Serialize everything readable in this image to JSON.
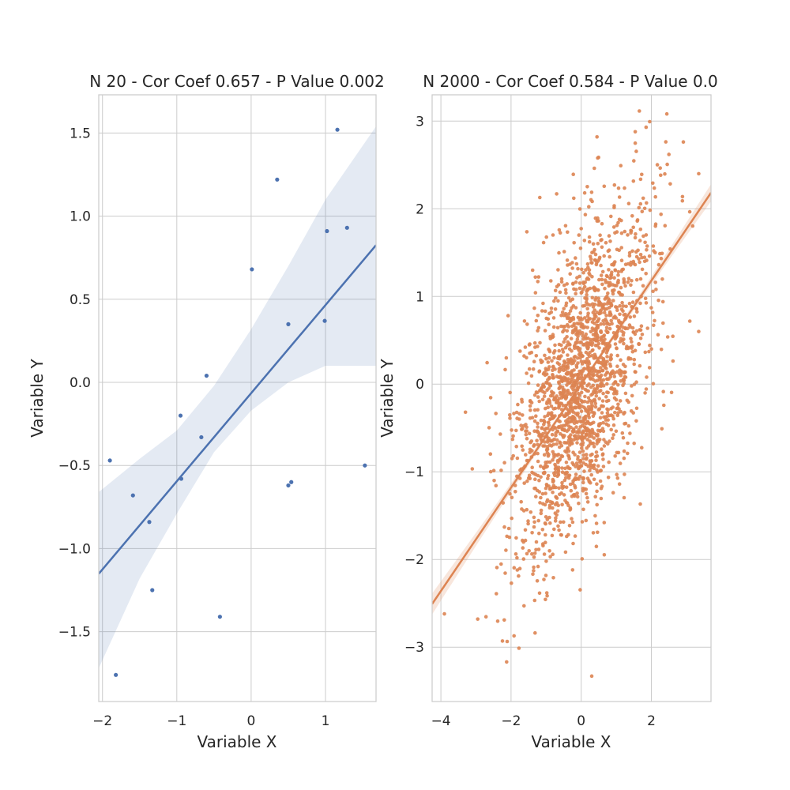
{
  "chart_data": [
    {
      "type": "scatter",
      "title": "N 20 - Cor Coef 0.657 - P Value 0.002",
      "xlabel": "Variable X",
      "ylabel": "Variable Y",
      "xlim": [
        -2.05,
        1.68
      ],
      "ylim": [
        -1.92,
        1.73
      ],
      "xticks": [
        -2,
        -1,
        0,
        1
      ],
      "yticks": [
        -1.5,
        -1.0,
        -0.5,
        0.0,
        0.5,
        1.0,
        1.5
      ],
      "xtick_labels": [
        "−2",
        "−1",
        "0",
        "1"
      ],
      "ytick_labels": [
        "−1.5",
        "−1.0",
        "−0.5",
        "0.0",
        "0.5",
        "1.0",
        "1.5"
      ],
      "grid": true,
      "color": "#4c72b0",
      "points": [
        {
          "x": -1.9,
          "y": -0.47
        },
        {
          "x": -1.82,
          "y": -1.76
        },
        {
          "x": -1.59,
          "y": -0.68
        },
        {
          "x": -1.37,
          "y": -0.84
        },
        {
          "x": -1.33,
          "y": -1.25
        },
        {
          "x": -0.95,
          "y": -0.2
        },
        {
          "x": -0.94,
          "y": -0.58
        },
        {
          "x": -0.67,
          "y": -0.33
        },
        {
          "x": -0.6,
          "y": 0.04
        },
        {
          "x": -0.42,
          "y": -1.41
        },
        {
          "x": 0.01,
          "y": 0.68
        },
        {
          "x": 0.35,
          "y": 1.22
        },
        {
          "x": 0.5,
          "y": 0.35
        },
        {
          "x": 0.5,
          "y": -0.62
        },
        {
          "x": 0.54,
          "y": -0.6
        },
        {
          "x": 0.99,
          "y": 0.37
        },
        {
          "x": 1.02,
          "y": 0.91
        },
        {
          "x": 1.16,
          "y": 1.52
        },
        {
          "x": 1.29,
          "y": 0.93
        },
        {
          "x": 1.53,
          "y": -0.5
        }
      ],
      "regression": {
        "slope": 0.53,
        "intercept": -0.065
      },
      "ci_band": [
        {
          "x": -2.05,
          "lo": -1.72,
          "hi": -0.66
        },
        {
          "x": -1.5,
          "lo": -1.18,
          "hi": -0.46
        },
        {
          "x": -1.0,
          "lo": -0.79,
          "hi": -0.29
        },
        {
          "x": -0.5,
          "lo": -0.42,
          "hi": -0.02
        },
        {
          "x": 0.0,
          "lo": -0.17,
          "hi": 0.32
        },
        {
          "x": 0.5,
          "lo": 0.0,
          "hi": 0.7
        },
        {
          "x": 1.0,
          "lo": 0.1,
          "hi": 1.1
        },
        {
          "x": 1.68,
          "lo": 0.1,
          "hi": 1.54
        }
      ]
    },
    {
      "type": "scatter",
      "title": "N 2000 - Cor Coef 0.584 - P Value 0.0",
      "xlabel": "Variable X",
      "ylabel": "Variable Y",
      "xlim": [
        -4.25,
        3.7
      ],
      "ylim": [
        -3.62,
        3.3
      ],
      "xticks": [
        -4,
        -2,
        0,
        2
      ],
      "yticks": [
        -3,
        -2,
        -1,
        0,
        1,
        2,
        3
      ],
      "xtick_labels": [
        "−4",
        "−2",
        "0",
        "2"
      ],
      "ytick_labels": [
        "−3",
        "−2",
        "−1",
        "0",
        "1",
        "2",
        "3"
      ],
      "grid": true,
      "color": "#dd8452",
      "n_points": 2000,
      "correlation": 0.584,
      "x_std": 0.99,
      "y_std": 1.0,
      "regression": {
        "slope": 0.59,
        "intercept": 0.0
      },
      "ci_halfwidth": {
        "at_center": 0.03,
        "at_edge": 0.12
      },
      "extra_points": [
        {
          "x": -3.9,
          "y": -2.62
        },
        {
          "x": -3.3,
          "y": -0.32
        },
        {
          "x": -2.95,
          "y": -2.68
        },
        {
          "x": 3.35,
          "y": 0.6
        },
        {
          "x": 3.35,
          "y": 2.4
        },
        {
          "x": 1.85,
          "y": 2.93
        },
        {
          "x": 0.3,
          "y": -3.33
        },
        {
          "x": 0.45,
          "y": 2.82
        },
        {
          "x": -0.7,
          "y": 2.17
        },
        {
          "x": 2.5,
          "y": 2.62
        }
      ]
    }
  ]
}
